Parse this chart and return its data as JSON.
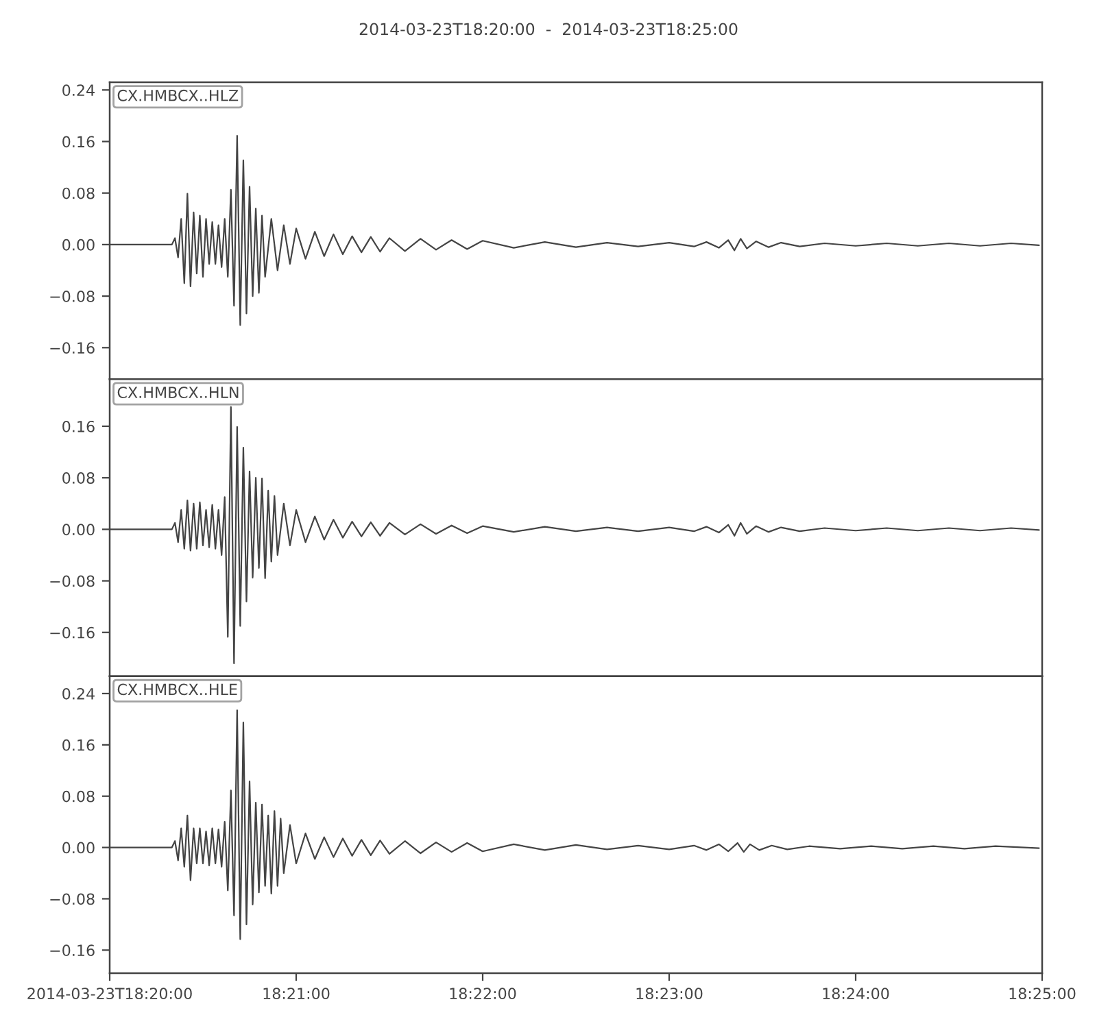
{
  "chart_data": [
    {
      "type": "line",
      "title": "2014-03-23T18:20:00  -  2014-03-23T18:25:00",
      "legend": "top left",
      "tick_labels": "y",
      "xlim": [
        "2014-03-23T18:20:00",
        "2014-03-23T18:25:00"
      ],
      "ylim": [
        -0.209,
        0.252
      ],
      "yticks": [
        {
          "value": -0.16,
          "label": "−0.16"
        },
        {
          "value": -0.08,
          "label": "−0.08"
        },
        {
          "value": 0,
          "label": "0.00"
        },
        0.08,
        0.16,
        0.24
      ],
      "series": [
        {
          "name": "CX.HMBCX..HLZ",
          "color": "#444444",
          "x": [
            "2014-03-23T18:20:00",
            "2014-03-23T18:20:20",
            "2014-03-23T18:20:21",
            "2014-03-23T18:20:22",
            "2014-03-23T18:20:23",
            "2014-03-23T18:20:24",
            "2014-03-23T18:20:25",
            "2014-03-23T18:20:26",
            "2014-03-23T18:20:27",
            "2014-03-23T18:20:28",
            "2014-03-23T18:20:29",
            "2014-03-23T18:20:30",
            "2014-03-23T18:20:31",
            "2014-03-23T18:20:32",
            "2014-03-23T18:20:33",
            "2014-03-23T18:20:34",
            "2014-03-23T18:20:35",
            "2014-03-23T18:20:36",
            "2014-03-23T18:20:37",
            "2014-03-23T18:20:38",
            "2014-03-23T18:20:39",
            "2014-03-23T18:20:40",
            "2014-03-23T18:20:41",
            "2014-03-23T18:20:42",
            "2014-03-23T18:20:43",
            "2014-03-23T18:20:44",
            "2014-03-23T18:20:45",
            "2014-03-23T18:20:46",
            "2014-03-23T18:20:47",
            "2014-03-23T18:20:48",
            "2014-03-23T18:20:49",
            "2014-03-23T18:20:50",
            "2014-03-23T18:20:52",
            "2014-03-23T18:20:54",
            "2014-03-23T18:20:56",
            "2014-03-23T18:20:58",
            "2014-03-23T18:21:00",
            "2014-03-23T18:21:03",
            "2014-03-23T18:21:06",
            "2014-03-23T18:21:09",
            "2014-03-23T18:21:12",
            "2014-03-23T18:21:15",
            "2014-03-23T18:21:18",
            "2014-03-23T18:21:21",
            "2014-03-23T18:21:24",
            "2014-03-23T18:21:27",
            "2014-03-23T18:21:30",
            "2014-03-23T18:21:35",
            "2014-03-23T18:21:40",
            "2014-03-23T18:21:45",
            "2014-03-23T18:21:50",
            "2014-03-23T18:21:55",
            "2014-03-23T18:22:00",
            "2014-03-23T18:22:10",
            "2014-03-23T18:22:20",
            "2014-03-23T18:22:30",
            "2014-03-23T18:22:40",
            "2014-03-23T18:22:50",
            "2014-03-23T18:23:00",
            "2014-03-23T18:23:08",
            "2014-03-23T18:23:12",
            "2014-03-23T18:23:16",
            "2014-03-23T18:23:19",
            "2014-03-23T18:23:21",
            "2014-03-23T18:23:23",
            "2014-03-23T18:23:25",
            "2014-03-23T18:23:28",
            "2014-03-23T18:23:32",
            "2014-03-23T18:23:36",
            "2014-03-23T18:23:42",
            "2014-03-23T18:23:50",
            "2014-03-23T18:24:00",
            "2014-03-23T18:24:10",
            "2014-03-23T18:24:20",
            "2014-03-23T18:24:30",
            "2014-03-23T18:24:40",
            "2014-03-23T18:24:50",
            "2014-03-23T18:24:59"
          ],
          "values": [
            0,
            0,
            0.01,
            -0.02,
            0.04,
            -0.06,
            0.079,
            -0.065,
            0.05,
            -0.045,
            0.045,
            -0.05,
            0.04,
            -0.03,
            0.035,
            -0.03,
            0.03,
            -0.035,
            0.04,
            -0.05,
            0.085,
            -0.095,
            0.169,
            -0.125,
            0.131,
            -0.107,
            0.09,
            -0.08,
            0.056,
            -0.075,
            0.045,
            -0.05,
            0.04,
            -0.04,
            0.03,
            -0.03,
            0.025,
            -0.022,
            0.02,
            -0.018,
            0.016,
            -0.015,
            0.013,
            -0.012,
            0.012,
            -0.011,
            0.01,
            -0.01,
            0.009,
            -0.008,
            0.007,
            -0.007,
            0.006,
            -0.005,
            0.004,
            -0.004,
            0.003,
            -0.003,
            0.003,
            -0.003,
            0.004,
            -0.005,
            0.007,
            -0.009,
            0.009,
            -0.006,
            0.005,
            -0.004,
            0.003,
            -0.003,
            0.002,
            -0.002,
            0.002,
            -0.002,
            0.002,
            -0.002,
            0.002,
            -0.001
          ]
        }
      ]
    },
    {
      "type": "line",
      "legend": "top left",
      "tick_labels": "y",
      "xlim": [
        "2014-03-23T18:20:00",
        "2014-03-23T18:25:00"
      ],
      "ylim": [
        -0.228,
        0.233
      ],
      "yticks": [
        {
          "value": -0.16,
          "label": "−0.16"
        },
        {
          "value": -0.08,
          "label": "−0.08"
        },
        {
          "value": 0,
          "label": "0.00"
        },
        0.08,
        0.16
      ],
      "series": [
        {
          "name": "CX.HMBCX..HLN",
          "color": "#444444",
          "x": [
            "2014-03-23T18:20:00",
            "2014-03-23T18:20:20",
            "2014-03-23T18:20:21",
            "2014-03-23T18:20:22",
            "2014-03-23T18:20:23",
            "2014-03-23T18:20:24",
            "2014-03-23T18:20:25",
            "2014-03-23T18:20:26",
            "2014-03-23T18:20:27",
            "2014-03-23T18:20:28",
            "2014-03-23T18:20:29",
            "2014-03-23T18:20:30",
            "2014-03-23T18:20:31",
            "2014-03-23T18:20:32",
            "2014-03-23T18:20:33",
            "2014-03-23T18:20:34",
            "2014-03-23T18:20:35",
            "2014-03-23T18:20:36",
            "2014-03-23T18:20:37",
            "2014-03-23T18:20:38",
            "2014-03-23T18:20:39",
            "2014-03-23T18:20:40",
            "2014-03-23T18:20:41",
            "2014-03-23T18:20:42",
            "2014-03-23T18:20:43",
            "2014-03-23T18:20:44",
            "2014-03-23T18:20:45",
            "2014-03-23T18:20:46",
            "2014-03-23T18:20:47",
            "2014-03-23T18:20:48",
            "2014-03-23T18:20:49",
            "2014-03-23T18:20:50",
            "2014-03-23T18:20:51",
            "2014-03-23T18:20:52",
            "2014-03-23T18:20:53",
            "2014-03-23T18:20:54",
            "2014-03-23T18:20:56",
            "2014-03-23T18:20:58",
            "2014-03-23T18:21:00",
            "2014-03-23T18:21:03",
            "2014-03-23T18:21:06",
            "2014-03-23T18:21:09",
            "2014-03-23T18:21:12",
            "2014-03-23T18:21:15",
            "2014-03-23T18:21:18",
            "2014-03-23T18:21:21",
            "2014-03-23T18:21:24",
            "2014-03-23T18:21:27",
            "2014-03-23T18:21:30",
            "2014-03-23T18:21:35",
            "2014-03-23T18:21:40",
            "2014-03-23T18:21:45",
            "2014-03-23T18:21:50",
            "2014-03-23T18:21:55",
            "2014-03-23T18:22:00",
            "2014-03-23T18:22:10",
            "2014-03-23T18:22:20",
            "2014-03-23T18:22:30",
            "2014-03-23T18:22:40",
            "2014-03-23T18:22:50",
            "2014-03-23T18:23:00",
            "2014-03-23T18:23:08",
            "2014-03-23T18:23:12",
            "2014-03-23T18:23:16",
            "2014-03-23T18:23:19",
            "2014-03-23T18:23:21",
            "2014-03-23T18:23:23",
            "2014-03-23T18:23:25",
            "2014-03-23T18:23:28",
            "2014-03-23T18:23:32",
            "2014-03-23T18:23:36",
            "2014-03-23T18:23:42",
            "2014-03-23T18:23:50",
            "2014-03-23T18:24:00",
            "2014-03-23T18:24:10",
            "2014-03-23T18:24:20",
            "2014-03-23T18:24:30",
            "2014-03-23T18:24:40",
            "2014-03-23T18:24:50",
            "2014-03-23T18:24:59"
          ],
          "values": [
            0,
            0,
            0.01,
            -0.02,
            0.03,
            -0.03,
            0.045,
            -0.033,
            0.04,
            -0.03,
            0.042,
            -0.025,
            0.03,
            -0.028,
            0.038,
            -0.03,
            0.03,
            -0.04,
            0.05,
            -0.167,
            0.19,
            -0.208,
            0.159,
            -0.15,
            0.127,
            -0.112,
            0.09,
            -0.075,
            0.08,
            -0.06,
            0.079,
            -0.076,
            0.06,
            -0.05,
            0.052,
            -0.04,
            0.04,
            -0.025,
            0.03,
            -0.02,
            0.02,
            -0.016,
            0.015,
            -0.013,
            0.012,
            -0.011,
            0.011,
            -0.01,
            0.01,
            -0.008,
            0.008,
            -0.007,
            0.006,
            -0.006,
            0.005,
            -0.004,
            0.004,
            -0.003,
            0.003,
            -0.003,
            0.003,
            -0.003,
            0.004,
            -0.005,
            0.007,
            -0.01,
            0.01,
            -0.007,
            0.005,
            -0.004,
            0.003,
            -0.003,
            0.002,
            -0.002,
            0.002,
            -0.002,
            0.002,
            -0.002,
            0.002,
            -0.001
          ]
        }
      ]
    },
    {
      "type": "line",
      "legend": "top left",
      "xlim": [
        "2014-03-23T18:20:00",
        "2014-03-23T18:25:00"
      ],
      "xticks": [
        {
          "value": "2014-03-23T18:20:00",
          "label": "2014-03-23T18:20:00"
        },
        {
          "value": "2014-03-23T18:21:00",
          "label": "18:21:00"
        },
        {
          "value": "2014-03-23T18:22:00",
          "label": "18:22:00"
        },
        {
          "value": "2014-03-23T18:23:00",
          "label": "18:23:00"
        },
        {
          "value": "2014-03-23T18:24:00",
          "label": "18:24:00"
        },
        {
          "value": "2014-03-23T18:25:00",
          "label": "18:25:00"
        }
      ],
      "ylim": [
        -0.196,
        0.267
      ],
      "yticks": [
        {
          "value": -0.16,
          "label": "−0.16"
        },
        {
          "value": -0.08,
          "label": "−0.08"
        },
        {
          "value": 0,
          "label": "0.00"
        },
        0.08,
        0.16,
        0.24
      ],
      "series": [
        {
          "name": "CX.HMBCX..HLE",
          "color": "#444444",
          "x": [
            "2014-03-23T18:20:00",
            "2014-03-23T18:20:20",
            "2014-03-23T18:20:21",
            "2014-03-23T18:20:22",
            "2014-03-23T18:20:23",
            "2014-03-23T18:20:24",
            "2014-03-23T18:20:25",
            "2014-03-23T18:20:26",
            "2014-03-23T18:20:27",
            "2014-03-23T18:20:28",
            "2014-03-23T18:20:29",
            "2014-03-23T18:20:30",
            "2014-03-23T18:20:31",
            "2014-03-23T18:20:32",
            "2014-03-23T18:20:33",
            "2014-03-23T18:20:34",
            "2014-03-23T18:20:35",
            "2014-03-23T18:20:36",
            "2014-03-23T18:20:37",
            "2014-03-23T18:20:38",
            "2014-03-23T18:20:39",
            "2014-03-23T18:20:40",
            "2014-03-23T18:20:41",
            "2014-03-23T18:20:42",
            "2014-03-23T18:20:43",
            "2014-03-23T18:20:44",
            "2014-03-23T18:20:45",
            "2014-03-23T18:20:46",
            "2014-03-23T18:20:47",
            "2014-03-23T18:20:48",
            "2014-03-23T18:20:49",
            "2014-03-23T18:20:50",
            "2014-03-23T18:20:51",
            "2014-03-23T18:20:52",
            "2014-03-23T18:20:53",
            "2014-03-23T18:20:54",
            "2014-03-23T18:20:55",
            "2014-03-23T18:20:56",
            "2014-03-23T18:20:58",
            "2014-03-23T18:21:00",
            "2014-03-23T18:21:03",
            "2014-03-23T18:21:06",
            "2014-03-23T18:21:09",
            "2014-03-23T18:21:12",
            "2014-03-23T18:21:15",
            "2014-03-23T18:21:18",
            "2014-03-23T18:21:21",
            "2014-03-23T18:21:24",
            "2014-03-23T18:21:27",
            "2014-03-23T18:21:30",
            "2014-03-23T18:21:35",
            "2014-03-23T18:21:40",
            "2014-03-23T18:21:45",
            "2014-03-23T18:21:50",
            "2014-03-23T18:21:55",
            "2014-03-23T18:22:00",
            "2014-03-23T18:22:10",
            "2014-03-23T18:22:20",
            "2014-03-23T18:22:30",
            "2014-03-23T18:22:40",
            "2014-03-23T18:22:50",
            "2014-03-23T18:23:00",
            "2014-03-23T18:23:08",
            "2014-03-23T18:23:12",
            "2014-03-23T18:23:16",
            "2014-03-23T18:23:19",
            "2014-03-23T18:23:22",
            "2014-03-23T18:23:24",
            "2014-03-23T18:23:26",
            "2014-03-23T18:23:29",
            "2014-03-23T18:23:33",
            "2014-03-23T18:23:38",
            "2014-03-23T18:23:45",
            "2014-03-23T18:23:55",
            "2014-03-23T18:24:05",
            "2014-03-23T18:24:15",
            "2014-03-23T18:24:25",
            "2014-03-23T18:24:35",
            "2014-03-23T18:24:45",
            "2014-03-23T18:24:59"
          ],
          "values": [
            0,
            0,
            0.01,
            -0.02,
            0.03,
            -0.03,
            0.05,
            -0.051,
            0.03,
            -0.025,
            0.03,
            -0.025,
            0.025,
            -0.028,
            0.03,
            -0.025,
            0.028,
            -0.03,
            0.04,
            -0.067,
            0.089,
            -0.106,
            0.214,
            -0.143,
            0.195,
            -0.12,
            0.103,
            -0.089,
            0.07,
            -0.07,
            0.067,
            -0.06,
            0.05,
            -0.072,
            0.057,
            -0.06,
            0.045,
            -0.04,
            0.035,
            -0.025,
            0.022,
            -0.018,
            0.016,
            -0.015,
            0.014,
            -0.013,
            0.012,
            -0.012,
            0.011,
            -0.01,
            0.01,
            -0.009,
            0.008,
            -0.007,
            0.007,
            -0.006,
            0.005,
            -0.004,
            0.004,
            -0.003,
            0.003,
            -0.003,
            0.003,
            -0.004,
            0.005,
            -0.006,
            0.007,
            -0.007,
            0.005,
            -0.004,
            0.003,
            -0.003,
            0.002,
            -0.002,
            0.002,
            -0.002,
            0.002,
            -0.002,
            0.002,
            -0.001
          ]
        }
      ]
    }
  ]
}
